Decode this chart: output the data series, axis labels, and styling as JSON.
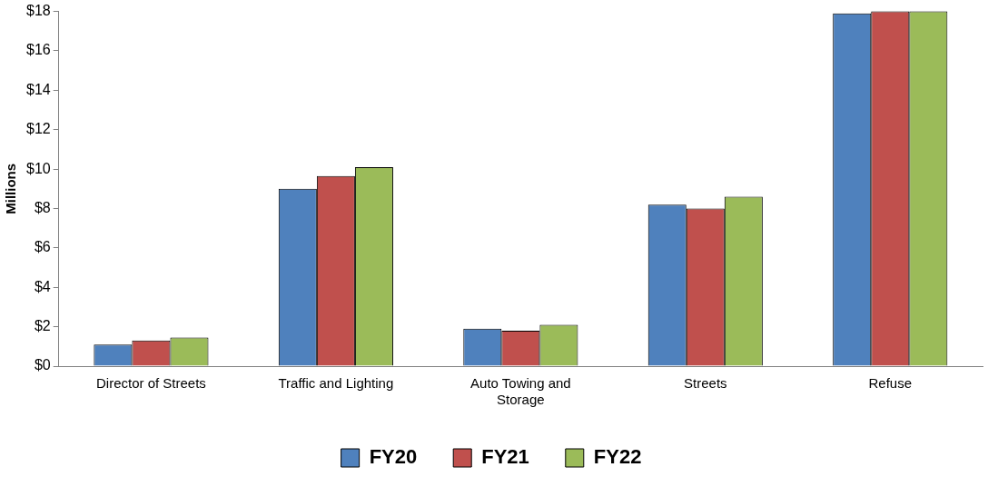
{
  "chart_data": {
    "type": "bar",
    "ylabel": "Millions",
    "categories": [
      "Director of Streets",
      "Traffic and Lighting",
      "Auto Towing and Storage",
      "Streets",
      "Refuse"
    ],
    "series": [
      {
        "name": "FY20",
        "color": "#4f81bd",
        "values": [
          1.1,
          9.0,
          1.9,
          8.2,
          17.9
        ]
      },
      {
        "name": "FY21",
        "color": "#c0504d",
        "values": [
          1.3,
          9.65,
          1.8,
          8.0,
          18
        ]
      },
      {
        "name": "FY22",
        "color": "#9bbb59",
        "values": [
          1.45,
          10.1,
          2.1,
          8.6,
          18
        ]
      }
    ],
    "ylim": [
      0,
      18
    ],
    "yticks": [
      {
        "value": 0,
        "label": "$0"
      },
      {
        "value": 2,
        "label": "$2"
      },
      {
        "value": 4,
        "label": "$4"
      },
      {
        "value": 6,
        "label": "$6"
      },
      {
        "value": 8,
        "label": "$8"
      },
      {
        "value": 10,
        "label": "$10"
      },
      {
        "value": 12,
        "label": "$12"
      },
      {
        "value": 14,
        "label": "$14"
      },
      {
        "value": 16,
        "label": "$16"
      },
      {
        "value": 18,
        "label": "$18"
      }
    ],
    "grid": false,
    "legend": "bottom"
  }
}
